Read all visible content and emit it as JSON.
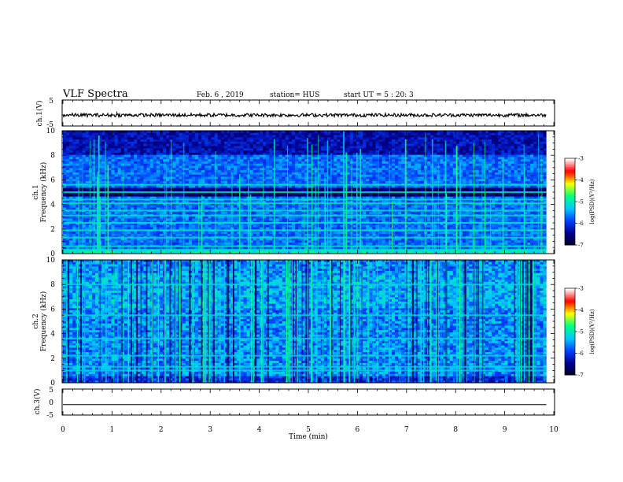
{
  "header": {
    "title": "VLF Spectra",
    "date": "Feb. 6 , 2019",
    "station": "station= HUS",
    "start": "start UT = 5 : 20: 3"
  },
  "colors": {
    "background": "#ffffff",
    "axis": "#000000",
    "colormap": [
      "#000020",
      "#000090",
      "#0040ff",
      "#00c8ff",
      "#00ff80",
      "#ffff00",
      "#ff0000",
      "#ffffff"
    ]
  },
  "chart_data": [
    {
      "type": "line",
      "panel": "ch1-waveform",
      "ylabel": "ch.1(V)",
      "ylim": [
        -5,
        5
      ],
      "yticks": [
        "5",
        "-5"
      ],
      "trace_level": -0.8,
      "xlim": [
        0,
        10
      ]
    },
    {
      "type": "heatmap",
      "panel": "ch1-spectrogram",
      "ylabel_top": "ch.1",
      "ylabel": "Frequency (kHz)",
      "ylim": [
        0,
        10
      ],
      "yticks": [
        "0",
        "2",
        "4",
        "6",
        "8",
        "10"
      ],
      "xlim": [
        0,
        10
      ],
      "data_end_min": 9.85,
      "narrowband_lines_khz": [
        0.3,
        0.6,
        1.3,
        1.9,
        2.5,
        3.1,
        3.5,
        4.1,
        4.4,
        5.0,
        5.6
      ],
      "colorbar": {
        "label": "log(PSD)(V²/Hz)",
        "range": [
          -7,
          -3
        ],
        "ticks": [
          "-3",
          "-4",
          "-5",
          "-6",
          "-7"
        ]
      }
    },
    {
      "type": "heatmap",
      "panel": "ch2-spectrogram",
      "ylabel_top": "ch.2",
      "ylabel": "Frequency (kHz)",
      "ylim": [
        0,
        10
      ],
      "yticks": [
        "0",
        "2",
        "4",
        "6",
        "8",
        "10"
      ],
      "xlim": [
        0,
        10
      ],
      "data_end_min": 9.85,
      "narrowband_lines_khz": [
        1.0,
        1.3,
        2.2,
        3.6,
        5.5,
        8.0
      ],
      "colorbar": {
        "label": "log(PSD)(V²/Hz)",
        "range": [
          -7,
          -3
        ],
        "ticks": [
          "-3",
          "-4",
          "-5",
          "-6",
          "-7"
        ]
      }
    },
    {
      "type": "line",
      "panel": "ch3-waveform",
      "ylabel": "ch.3(V)",
      "ylim": [
        -5,
        5
      ],
      "yticks": [
        "5",
        "0",
        "-5"
      ],
      "trace_level": -1.0,
      "xlim": [
        0,
        10
      ],
      "xlabel": "Time (min)",
      "xticks": [
        "0",
        "1",
        "2",
        "3",
        "4",
        "5",
        "6",
        "7",
        "8",
        "9",
        "10"
      ]
    }
  ]
}
